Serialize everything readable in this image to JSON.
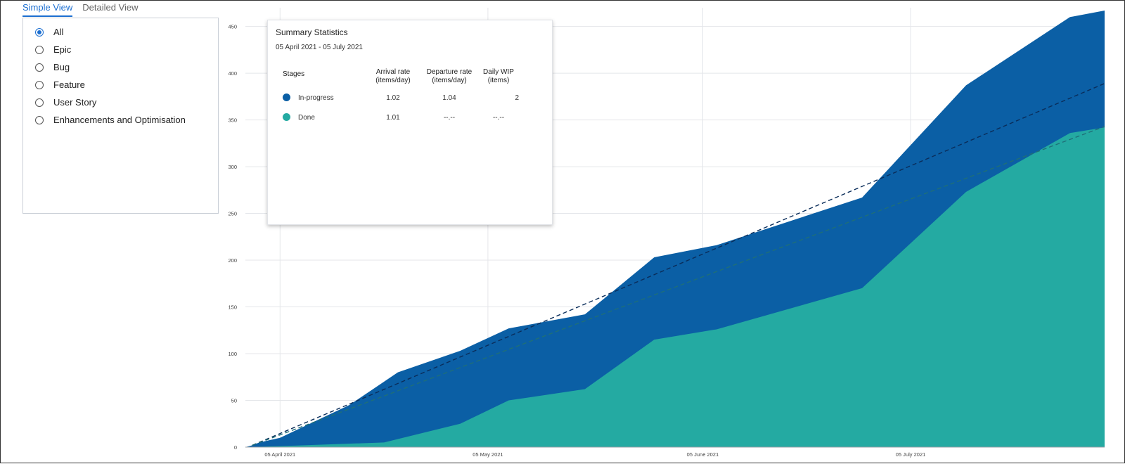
{
  "tabs": [
    {
      "label": "Simple View",
      "active": true
    },
    {
      "label": "Detailed View",
      "active": false
    }
  ],
  "filter": {
    "selected": "All",
    "options": [
      "All",
      "Epic",
      "Bug",
      "Feature",
      "User Story",
      "Enhancements and Optimisation"
    ]
  },
  "summary": {
    "title": "Summary Statistics",
    "date_range": "05 April 2021 - 05 July 2021",
    "headers": {
      "stages": "Stages",
      "arrival_rate": "Arrival rate",
      "arrival_unit": "(items/day)",
      "departure_rate": "Departure rate",
      "departure_unit": "(items/day)",
      "daily_wip": "Daily WIP",
      "daily_wip_unit": "(items)"
    },
    "rows": [
      {
        "stage": "In-progress",
        "color": "#0b5fa5",
        "arrival": "1.02",
        "departure": "1.04",
        "wip": "2"
      },
      {
        "stage": "Done",
        "color": "#24aaa2",
        "arrival": "1.01",
        "departure": "--.--",
        "wip": "--.--"
      }
    ]
  },
  "colors": {
    "accent": "#1c6fd1",
    "in_progress": "#0b5fa5",
    "done": "#24aaa2"
  },
  "chart_data": {
    "type": "area",
    "yticks": [
      0,
      50,
      100,
      150,
      200,
      250,
      300,
      350,
      400,
      450
    ],
    "ylim": [
      0,
      470
    ],
    "xlim": [
      "2021-03-31",
      "2021-08-02"
    ],
    "xticks": [
      {
        "date": "2021-04-05",
        "label": "05 April 2021"
      },
      {
        "date": "2021-05-05",
        "label": "05 May 2021"
      },
      {
        "date": "2021-06-05",
        "label": "05 June 2021"
      },
      {
        "date": "2021-07-05",
        "label": "05 July 2021"
      }
    ],
    "stacking": "overlapping",
    "grid": true,
    "series": [
      {
        "key": "in_progress",
        "points": [
          [
            "2021-03-31",
            0
          ],
          [
            "2021-04-01",
            2
          ],
          [
            "2021-04-02",
            5
          ],
          [
            "2021-04-05",
            10
          ],
          [
            "2021-04-15",
            45
          ],
          [
            "2021-04-19",
            65
          ],
          [
            "2021-04-22",
            80
          ],
          [
            "2021-05-01",
            103
          ],
          [
            "2021-05-08",
            127
          ],
          [
            "2021-05-19",
            142
          ],
          [
            "2021-05-29",
            203
          ],
          [
            "2021-06-07",
            216
          ],
          [
            "2021-06-28",
            267
          ],
          [
            "2021-07-13",
            387
          ],
          [
            "2021-07-28",
            460
          ],
          [
            "2021-08-02",
            467
          ]
        ]
      },
      {
        "key": "done",
        "points": [
          [
            "2021-03-31",
            0
          ],
          [
            "2021-04-05",
            1
          ],
          [
            "2021-04-20",
            5
          ],
          [
            "2021-05-01",
            25
          ],
          [
            "2021-05-08",
            50
          ],
          [
            "2021-05-19",
            62
          ],
          [
            "2021-05-29",
            115
          ],
          [
            "2021-06-07",
            126
          ],
          [
            "2021-06-28",
            170
          ],
          [
            "2021-07-13",
            273
          ],
          [
            "2021-07-28",
            336
          ],
          [
            "2021-08-02",
            342
          ]
        ]
      }
    ],
    "trend_lines": [
      {
        "key": "in_progress",
        "from": [
          "2021-04-01",
          2
        ],
        "to": [
          "2021-08-02",
          389
        ]
      },
      {
        "key": "done",
        "from": [
          "2021-04-01",
          2
        ],
        "to": [
          "2021-08-02",
          343
        ]
      }
    ]
  }
}
